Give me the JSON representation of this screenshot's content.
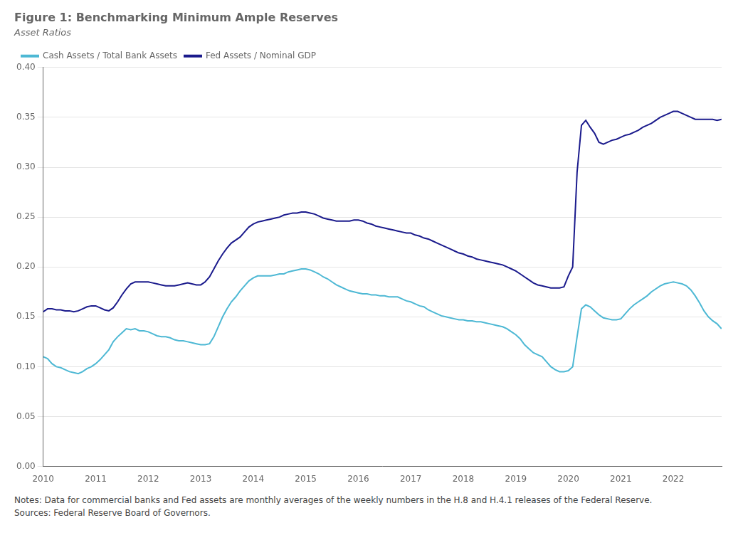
{
  "chart_data": {
    "type": "line",
    "title": "Figure 1: Benchmarking Minimum Ample Reserves",
    "subtitle": "Asset Ratios",
    "notes": [
      "Notes: Data for commercial banks and Fed assets are monthly averages of the weekly numbers in the H.8 and H.4.1 releases of the Federal Reserve.",
      "Sources: Federal Reserve Board of Governors."
    ],
    "x": [
      2010.0,
      2010.083,
      2010.167,
      2010.25,
      2010.333,
      2010.417,
      2010.5,
      2010.583,
      2010.667,
      2010.75,
      2010.833,
      2010.917,
      2011.0,
      2011.083,
      2011.167,
      2011.25,
      2011.333,
      2011.417,
      2011.5,
      2011.583,
      2011.667,
      2011.75,
      2011.833,
      2011.917,
      2012.0,
      2012.083,
      2012.167,
      2012.25,
      2012.333,
      2012.417,
      2012.5,
      2012.583,
      2012.667,
      2012.75,
      2012.833,
      2012.917,
      2013.0,
      2013.083,
      2013.167,
      2013.25,
      2013.333,
      2013.417,
      2013.5,
      2013.583,
      2013.667,
      2013.75,
      2013.833,
      2013.917,
      2014.0,
      2014.083,
      2014.167,
      2014.25,
      2014.333,
      2014.417,
      2014.5,
      2014.583,
      2014.667,
      2014.75,
      2014.833,
      2014.917,
      2015.0,
      2015.083,
      2015.167,
      2015.25,
      2015.333,
      2015.417,
      2015.5,
      2015.583,
      2015.667,
      2015.75,
      2015.833,
      2015.917,
      2016.0,
      2016.083,
      2016.167,
      2016.25,
      2016.333,
      2016.417,
      2016.5,
      2016.583,
      2016.667,
      2016.75,
      2016.833,
      2016.917,
      2017.0,
      2017.083,
      2017.167,
      2017.25,
      2017.333,
      2017.417,
      2017.5,
      2017.583,
      2017.667,
      2017.75,
      2017.833,
      2017.917,
      2018.0,
      2018.083,
      2018.167,
      2018.25,
      2018.333,
      2018.417,
      2018.5,
      2018.583,
      2018.667,
      2018.75,
      2018.833,
      2018.917,
      2019.0,
      2019.083,
      2019.167,
      2019.25,
      2019.333,
      2019.417,
      2019.5,
      2019.583,
      2019.667,
      2019.75,
      2019.833,
      2019.917,
      2020.0,
      2020.083,
      2020.167,
      2020.25,
      2020.333,
      2020.417,
      2020.5,
      2020.583,
      2020.667,
      2020.75,
      2020.833,
      2020.917,
      2021.0,
      2021.083,
      2021.167,
      2021.25,
      2021.333,
      2021.417,
      2021.5,
      2021.583,
      2021.667,
      2021.75,
      2021.833,
      2021.917,
      2022.0,
      2022.083,
      2022.167,
      2022.25,
      2022.333,
      2022.417,
      2022.5,
      2022.583,
      2022.667,
      2022.75,
      2022.833,
      2022.917
    ],
    "xlim": [
      2010,
      2022.92
    ],
    "xticks": [
      2010,
      2011,
      2012,
      2013,
      2014,
      2015,
      2016,
      2017,
      2018,
      2019,
      2020,
      2021,
      2022
    ],
    "ylim": [
      0.0,
      0.4
    ],
    "yticks": [
      {
        "value": 0.0,
        "label": "0.00"
      },
      0.05,
      {
        "value": 0.1,
        "label": "0.10"
      },
      0.15,
      {
        "value": 0.2,
        "label": "0.20"
      },
      0.25,
      {
        "value": 0.3,
        "label": "0.30"
      },
      0.35,
      {
        "value": 0.4,
        "label": "0.40"
      }
    ],
    "grid": "y",
    "legend": "upper left",
    "series": [
      {
        "name": "Cash Assets / Total Bank Assets",
        "color": "#4db8d4",
        "values": [
          0.11,
          0.108,
          0.103,
          0.1,
          0.099,
          0.097,
          0.095,
          0.094,
          0.093,
          0.095,
          0.098,
          0.1,
          0.103,
          0.107,
          0.112,
          0.117,
          0.125,
          0.13,
          0.134,
          0.138,
          0.137,
          0.138,
          0.136,
          0.136,
          0.135,
          0.133,
          0.131,
          0.13,
          0.13,
          0.129,
          0.127,
          0.126,
          0.126,
          0.125,
          0.124,
          0.123,
          0.122,
          0.122,
          0.123,
          0.13,
          0.14,
          0.15,
          0.158,
          0.165,
          0.17,
          0.176,
          0.181,
          0.186,
          0.189,
          0.191,
          0.191,
          0.191,
          0.191,
          0.192,
          0.193,
          0.193,
          0.195,
          0.196,
          0.197,
          0.198,
          0.198,
          0.197,
          0.195,
          0.193,
          0.19,
          0.188,
          0.185,
          0.182,
          0.18,
          0.178,
          0.176,
          0.175,
          0.174,
          0.173,
          0.173,
          0.172,
          0.172,
          0.171,
          0.171,
          0.17,
          0.17,
          0.17,
          0.168,
          0.166,
          0.165,
          0.163,
          0.161,
          0.16,
          0.157,
          0.155,
          0.153,
          0.151,
          0.15,
          0.149,
          0.148,
          0.147,
          0.147,
          0.146,
          0.146,
          0.145,
          0.145,
          0.144,
          0.143,
          0.142,
          0.141,
          0.14,
          0.138,
          0.135,
          0.132,
          0.128,
          0.122,
          0.118,
          0.114,
          0.112,
          0.11,
          0.105,
          0.1,
          0.097,
          0.095,
          0.095,
          0.096,
          0.1,
          0.13,
          0.158,
          0.162,
          0.16,
          0.156,
          0.152,
          0.149,
          0.148,
          0.147,
          0.147,
          0.148,
          0.153,
          0.158,
          0.162,
          0.165,
          0.168,
          0.171,
          0.175,
          0.178,
          0.181,
          0.183,
          0.184,
          0.185,
          0.184,
          0.183,
          0.181,
          0.177,
          0.171,
          0.164,
          0.156,
          0.15,
          0.146,
          0.143,
          0.138
        ]
      },
      {
        "name": "Fed Assets / Nominal GDP",
        "color": "#1a1a8c",
        "values": [
          0.155,
          0.158,
          0.158,
          0.157,
          0.157,
          0.156,
          0.156,
          0.155,
          0.156,
          0.158,
          0.16,
          0.161,
          0.161,
          0.159,
          0.157,
          0.156,
          0.159,
          0.165,
          0.172,
          0.178,
          0.183,
          0.185,
          0.185,
          0.185,
          0.185,
          0.184,
          0.183,
          0.182,
          0.181,
          0.181,
          0.181,
          0.182,
          0.183,
          0.184,
          0.183,
          0.182,
          0.182,
          0.185,
          0.19,
          0.198,
          0.206,
          0.213,
          0.219,
          0.224,
          0.227,
          0.23,
          0.235,
          0.24,
          0.243,
          0.245,
          0.246,
          0.247,
          0.248,
          0.249,
          0.25,
          0.252,
          0.253,
          0.254,
          0.254,
          0.255,
          0.255,
          0.254,
          0.253,
          0.251,
          0.249,
          0.248,
          0.247,
          0.246,
          0.246,
          0.246,
          0.246,
          0.247,
          0.247,
          0.246,
          0.244,
          0.243,
          0.241,
          0.24,
          0.239,
          0.238,
          0.237,
          0.236,
          0.235,
          0.234,
          0.234,
          0.232,
          0.231,
          0.229,
          0.228,
          0.226,
          0.224,
          0.222,
          0.22,
          0.218,
          0.216,
          0.214,
          0.213,
          0.211,
          0.21,
          0.208,
          0.207,
          0.206,
          0.205,
          0.204,
          0.203,
          0.202,
          0.2,
          0.198,
          0.196,
          0.193,
          0.19,
          0.187,
          0.184,
          0.182,
          0.181,
          0.18,
          0.179,
          0.179,
          0.179,
          0.18,
          0.191,
          0.2,
          0.295,
          0.342,
          0.347,
          0.34,
          0.334,
          0.325,
          0.323,
          0.325,
          0.327,
          0.328,
          0.33,
          0.332,
          0.333,
          0.335,
          0.337,
          0.34,
          0.342,
          0.344,
          0.347,
          0.35,
          0.352,
          0.354,
          0.356,
          0.356,
          0.354,
          0.352,
          0.35,
          0.348,
          0.348,
          0.348,
          0.348,
          0.348,
          0.347,
          0.348
        ]
      }
    ]
  }
}
